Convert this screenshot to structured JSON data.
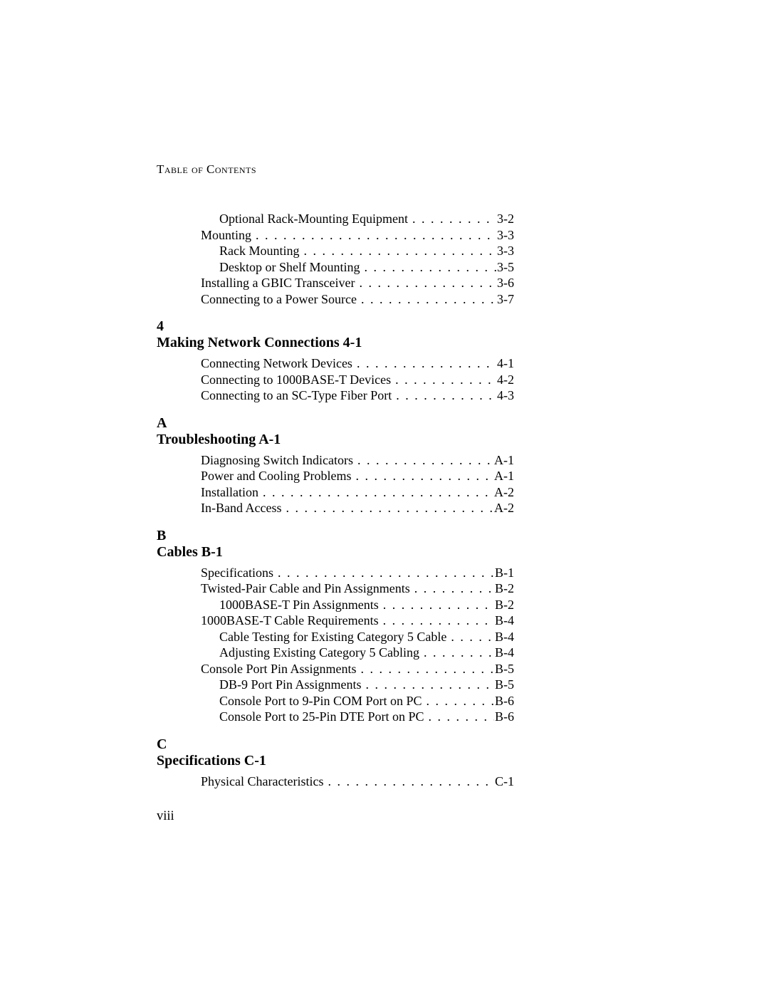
{
  "header": "Table of Contents",
  "pageNumber": "viii",
  "dotFill": " . . . . . . . . . . . . . . . . . . . . . . . . . . . . . . . . . . . . . . . . . . . . . . . . . . . . . . . . . . . . . . . . . . . . . . . . . . . . . . . . . . . . . . . . . . . . . . . . . . . .",
  "sections": [
    {
      "chapterLabel": "",
      "chapterTitle": "",
      "entries": [
        {
          "indent": 1,
          "label": "Optional Rack-Mounting Equipment",
          "page": "3-2"
        },
        {
          "indent": 0,
          "label": "Mounting",
          "page": "3-3"
        },
        {
          "indent": 1,
          "label": "Rack Mounting",
          "page": "3-3"
        },
        {
          "indent": 1,
          "label": "Desktop or Shelf Mounting",
          "page": "3-5"
        },
        {
          "indent": 0,
          "label": "Installing a GBIC Transceiver",
          "page": "3-6"
        },
        {
          "indent": 0,
          "label": "Connecting to a Power Source",
          "page": "3-7"
        }
      ]
    },
    {
      "chapterLabel": "4",
      "chapterTitle": "Making Network Connections 4-1",
      "entries": [
        {
          "indent": 0,
          "label": "Connecting Network Devices",
          "page": "4-1"
        },
        {
          "indent": 0,
          "label": "Connecting to 1000BASE-T Devices",
          "page": "4-2"
        },
        {
          "indent": 0,
          "label": "Connecting to an SC-Type Fiber Port",
          "page": "4-3"
        }
      ]
    },
    {
      "chapterLabel": "A",
      "chapterTitle": "Troubleshooting A-1",
      "entries": [
        {
          "indent": 0,
          "label": "Diagnosing Switch Indicators",
          "page": "A-1"
        },
        {
          "indent": 0,
          "label": "Power and Cooling Problems",
          "page": "A-1"
        },
        {
          "indent": 0,
          "label": "Installation",
          "page": "A-2"
        },
        {
          "indent": 0,
          "label": "In-Band Access",
          "page": "A-2"
        }
      ]
    },
    {
      "chapterLabel": "B",
      "chapterTitle": "Cables B-1",
      "entries": [
        {
          "indent": 0,
          "label": "Specifications",
          "page": "B-1"
        },
        {
          "indent": 0,
          "label": "Twisted-Pair Cable and Pin Assignments",
          "page": "B-2"
        },
        {
          "indent": 1,
          "label": "1000BASE-T Pin Assignments",
          "page": "B-2"
        },
        {
          "indent": 0,
          "label": "1000BASE-T Cable Requirements",
          "page": "B-4"
        },
        {
          "indent": 1,
          "label": "Cable Testing for Existing Category 5 Cable",
          "page": "B-4"
        },
        {
          "indent": 1,
          "label": "Adjusting Existing Category 5 Cabling",
          "page": "B-4"
        },
        {
          "indent": 0,
          "label": "Console Port Pin Assignments",
          "page": "B-5"
        },
        {
          "indent": 1,
          "label": "DB-9 Port Pin Assignments",
          "page": "B-5"
        },
        {
          "indent": 1,
          "label": "Console Port to 9-Pin COM Port on PC",
          "page": "B-6"
        },
        {
          "indent": 1,
          "label": "Console Port to 25-Pin DTE Port on PC",
          "page": "B-6"
        }
      ]
    },
    {
      "chapterLabel": "C",
      "chapterTitle": "Specifications C-1",
      "entries": [
        {
          "indent": 0,
          "label": "Physical Characteristics",
          "page": "C-1"
        }
      ]
    }
  ]
}
